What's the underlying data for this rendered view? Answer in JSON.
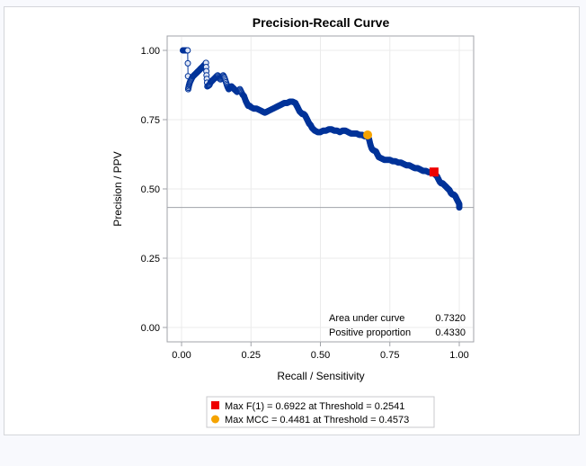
{
  "chart_data": {
    "type": "scatter",
    "title": "Precision-Recall Curve",
    "xlabel": "Recall / Sensitivity",
    "ylabel": "Precision / PPV",
    "xlim": [
      0,
      1
    ],
    "ylim": [
      0,
      1
    ],
    "xticks": [
      "0.00",
      "0.25",
      "0.50",
      "0.75",
      "1.00"
    ],
    "yticks": [
      "0.00",
      "0.25",
      "0.50",
      "0.75",
      "1.00"
    ],
    "grid": true,
    "baseline": {
      "label": "Positive proportion",
      "value": 0.433
    },
    "series": [
      {
        "name": "Precision-Recall",
        "color": "#003399",
        "points": [
          [
            0.005,
            1.0
          ],
          [
            0.01,
            1.0
          ],
          [
            0.015,
            1.0
          ],
          [
            0.02,
            1.0
          ],
          [
            0.022,
            1.0
          ],
          [
            0.024,
            0.86
          ],
          [
            0.027,
            0.875
          ],
          [
            0.03,
            0.885
          ],
          [
            0.035,
            0.895
          ],
          [
            0.04,
            0.905
          ],
          [
            0.045,
            0.91
          ],
          [
            0.05,
            0.915
          ],
          [
            0.055,
            0.92
          ],
          [
            0.06,
            0.925
          ],
          [
            0.065,
            0.93
          ],
          [
            0.07,
            0.935
          ],
          [
            0.075,
            0.94
          ],
          [
            0.08,
            0.945
          ],
          [
            0.085,
            0.95
          ],
          [
            0.088,
            0.955
          ],
          [
            0.09,
            0.91
          ],
          [
            0.093,
            0.87
          ],
          [
            0.1,
            0.875
          ],
          [
            0.105,
            0.885
          ],
          [
            0.11,
            0.89
          ],
          [
            0.115,
            0.895
          ],
          [
            0.12,
            0.9
          ],
          [
            0.125,
            0.905
          ],
          [
            0.13,
            0.91
          ],
          [
            0.135,
            0.9
          ],
          [
            0.14,
            0.895
          ],
          [
            0.145,
            0.905
          ],
          [
            0.15,
            0.91
          ],
          [
            0.155,
            0.9
          ],
          [
            0.16,
            0.885
          ],
          [
            0.165,
            0.87
          ],
          [
            0.17,
            0.86
          ],
          [
            0.175,
            0.865
          ],
          [
            0.18,
            0.87
          ],
          [
            0.185,
            0.865
          ],
          [
            0.19,
            0.86
          ],
          [
            0.195,
            0.855
          ],
          [
            0.2,
            0.85
          ],
          [
            0.205,
            0.855
          ],
          [
            0.21,
            0.86
          ],
          [
            0.215,
            0.85
          ],
          [
            0.22,
            0.84
          ],
          [
            0.225,
            0.835
          ],
          [
            0.23,
            0.82
          ],
          [
            0.235,
            0.81
          ],
          [
            0.24,
            0.8
          ],
          [
            0.245,
            0.8
          ],
          [
            0.25,
            0.795
          ],
          [
            0.26,
            0.79
          ],
          [
            0.27,
            0.79
          ],
          [
            0.28,
            0.785
          ],
          [
            0.29,
            0.78
          ],
          [
            0.3,
            0.775
          ],
          [
            0.31,
            0.78
          ],
          [
            0.32,
            0.785
          ],
          [
            0.33,
            0.79
          ],
          [
            0.34,
            0.795
          ],
          [
            0.35,
            0.8
          ],
          [
            0.36,
            0.805
          ],
          [
            0.37,
            0.81
          ],
          [
            0.38,
            0.81
          ],
          [
            0.39,
            0.815
          ],
          [
            0.4,
            0.815
          ],
          [
            0.41,
            0.81
          ],
          [
            0.415,
            0.8
          ],
          [
            0.42,
            0.79
          ],
          [
            0.425,
            0.78
          ],
          [
            0.43,
            0.775
          ],
          [
            0.435,
            0.77
          ],
          [
            0.44,
            0.77
          ],
          [
            0.445,
            0.765
          ],
          [
            0.45,
            0.755
          ],
          [
            0.455,
            0.745
          ],
          [
            0.46,
            0.735
          ],
          [
            0.465,
            0.73
          ],
          [
            0.47,
            0.72
          ],
          [
            0.475,
            0.715
          ],
          [
            0.48,
            0.71
          ],
          [
            0.49,
            0.705
          ],
          [
            0.5,
            0.705
          ],
          [
            0.51,
            0.71
          ],
          [
            0.52,
            0.71
          ],
          [
            0.53,
            0.715
          ],
          [
            0.54,
            0.715
          ],
          [
            0.55,
            0.71
          ],
          [
            0.56,
            0.71
          ],
          [
            0.57,
            0.705
          ],
          [
            0.58,
            0.71
          ],
          [
            0.59,
            0.71
          ],
          [
            0.6,
            0.705
          ],
          [
            0.61,
            0.7
          ],
          [
            0.62,
            0.7
          ],
          [
            0.63,
            0.7
          ],
          [
            0.64,
            0.695
          ],
          [
            0.65,
            0.695
          ],
          [
            0.66,
            0.69
          ],
          [
            0.67,
            0.69
          ],
          [
            0.675,
            0.68
          ],
          [
            0.68,
            0.66
          ],
          [
            0.685,
            0.645
          ],
          [
            0.69,
            0.64
          ],
          [
            0.7,
            0.635
          ],
          [
            0.705,
            0.625
          ],
          [
            0.71,
            0.615
          ],
          [
            0.72,
            0.61
          ],
          [
            0.73,
            0.605
          ],
          [
            0.74,
            0.605
          ],
          [
            0.75,
            0.605
          ],
          [
            0.76,
            0.6
          ],
          [
            0.77,
            0.6
          ],
          [
            0.78,
            0.595
          ],
          [
            0.79,
            0.595
          ],
          [
            0.8,
            0.59
          ],
          [
            0.81,
            0.585
          ],
          [
            0.82,
            0.585
          ],
          [
            0.83,
            0.58
          ],
          [
            0.84,
            0.575
          ],
          [
            0.85,
            0.575
          ],
          [
            0.86,
            0.57
          ],
          [
            0.87,
            0.565
          ],
          [
            0.88,
            0.565
          ],
          [
            0.89,
            0.56
          ],
          [
            0.9,
            0.56
          ],
          [
            0.91,
            0.555
          ],
          [
            0.92,
            0.545
          ],
          [
            0.925,
            0.535
          ],
          [
            0.93,
            0.525
          ],
          [
            0.935,
            0.52
          ],
          [
            0.94,
            0.52
          ],
          [
            0.945,
            0.515
          ],
          [
            0.95,
            0.51
          ],
          [
            0.955,
            0.505
          ],
          [
            0.96,
            0.5
          ],
          [
            0.965,
            0.495
          ],
          [
            0.97,
            0.485
          ],
          [
            0.975,
            0.48
          ],
          [
            0.98,
            0.48
          ],
          [
            0.985,
            0.475
          ],
          [
            0.99,
            0.465
          ],
          [
            0.995,
            0.455
          ],
          [
            1.0,
            0.445
          ],
          [
            1.0,
            0.433
          ]
        ]
      }
    ],
    "markers": [
      {
        "name": "Max F(1)",
        "shape": "square",
        "color": "#ee0000",
        "recall": 0.909,
        "precision": 0.561,
        "legend": "Max F(1) = 0.6922 at Threshold = 0.2541"
      },
      {
        "name": "Max MCC",
        "shape": "circle",
        "color": "#f5a300",
        "recall": 0.67,
        "precision": 0.695,
        "legend": "Max MCC  = 0.4481 at Threshold = 0.4573"
      }
    ],
    "inset_table": [
      {
        "label": "Area under curve",
        "value": "0.7320"
      },
      {
        "label": "Positive proportion",
        "value": "0.4330"
      }
    ],
    "legend_position": "bottom"
  }
}
